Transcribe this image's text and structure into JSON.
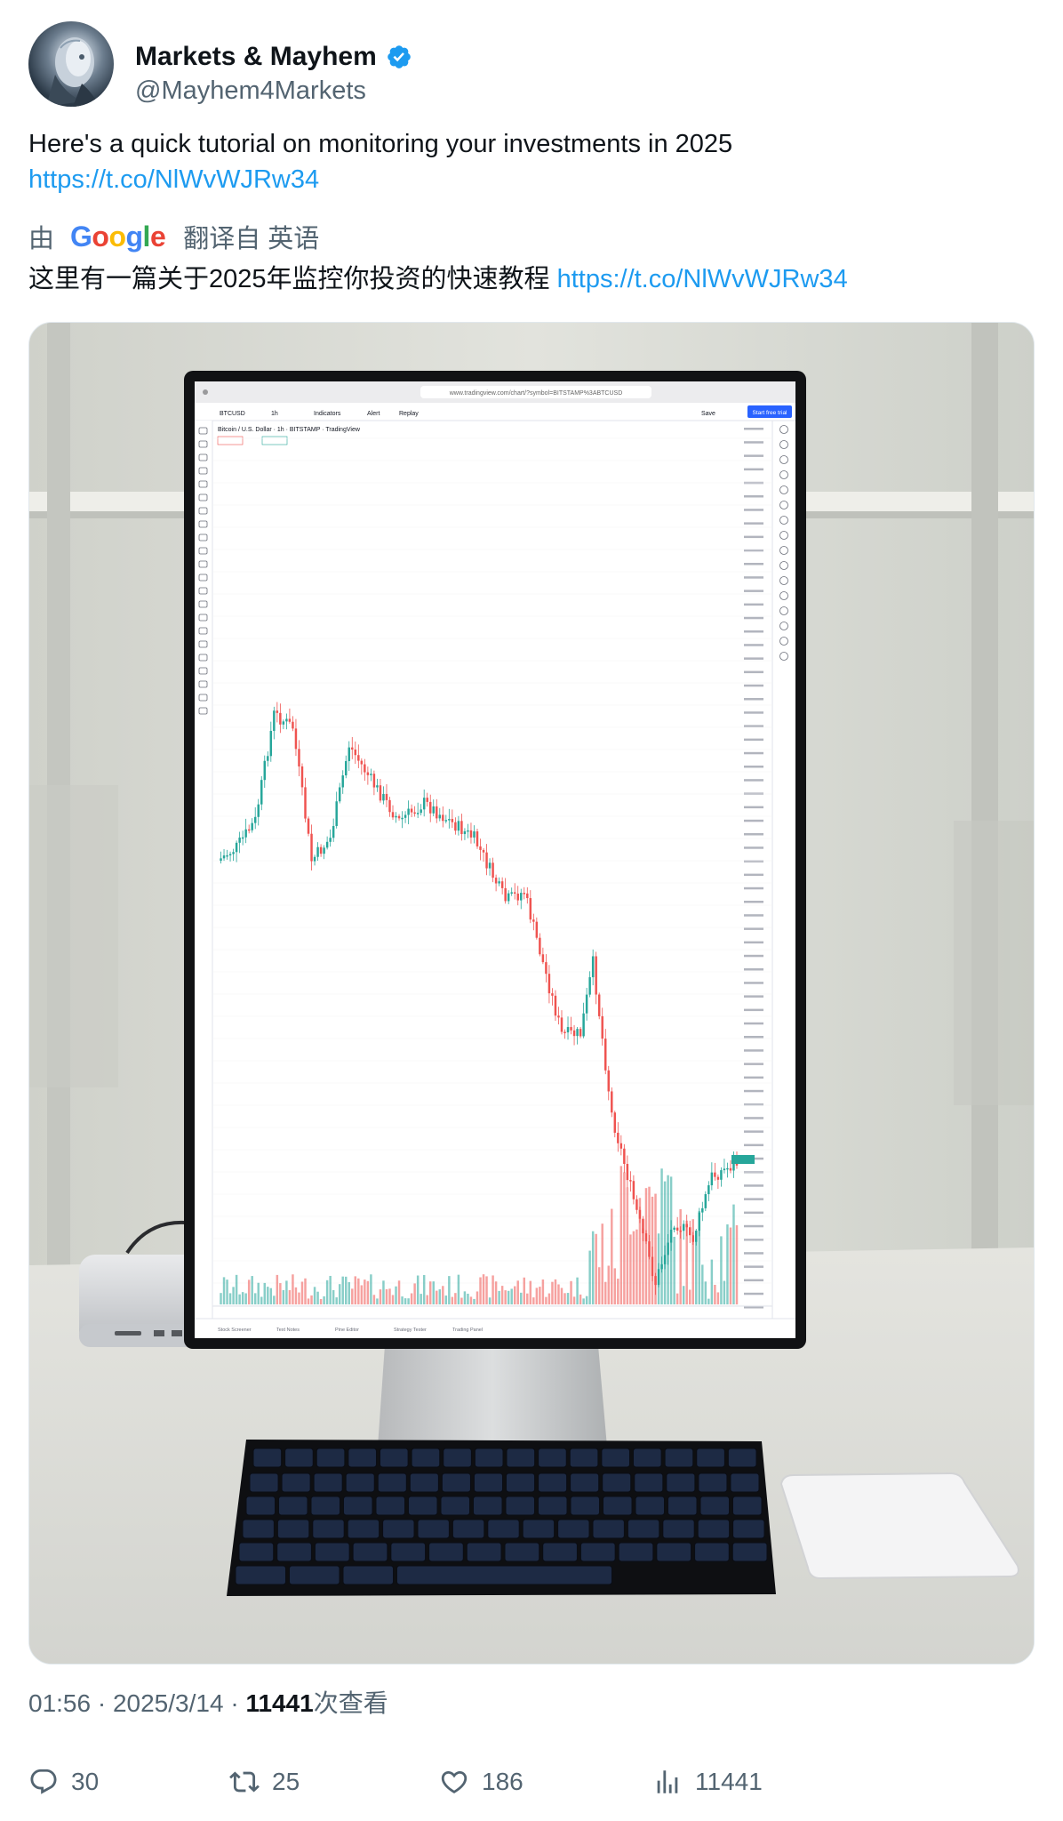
{
  "author": {
    "display_name": "Markets & Mayhem",
    "handle": "@Mayhem4Markets",
    "verified": true
  },
  "tweet": {
    "text": "Here's a quick tutorial on monitoring your investments in 2025",
    "link": "https://t.co/NlWvWJRw34"
  },
  "translation": {
    "by": "由",
    "provider": "Google",
    "translated_from": "翻译自 英语",
    "text": "这里有一篇关于2025年监控你投资的快速教程",
    "link": "https://t.co/NlWvWJRw34"
  },
  "media": {
    "screen": {
      "ticker": "BTCUSD",
      "interval": "1h",
      "indicators_label": "Indicators",
      "alert_label": "Alert",
      "replay_label": "Replay",
      "save_label": "Save",
      "cta_label": "Start free trial",
      "chart_title": "Bitcoin / U.S. Dollar · 1h · BITSTAMP · TradingView",
      "url": "www.tradingview.com/chart/?symbol=BITSTAMP%3ABTCUSD",
      "bottom_tabs": [
        "Stock Screener",
        "Text Notes",
        "Pine Editor",
        "Strategy Tester",
        "Trading Panel"
      ]
    },
    "colors": {
      "up": "#26a69a",
      "down": "#ef5350",
      "accent": "#2962ff"
    }
  },
  "meta": {
    "time": "01:56",
    "date": "2025/3/14",
    "views": "11441",
    "views_suffix": "次查看"
  },
  "actions": {
    "replies": "30",
    "reposts": "25",
    "likes": "186",
    "views": "11441"
  },
  "icons": [
    "verified-badge-icon",
    "reply-icon",
    "repost-icon",
    "like-icon",
    "views-icon"
  ]
}
